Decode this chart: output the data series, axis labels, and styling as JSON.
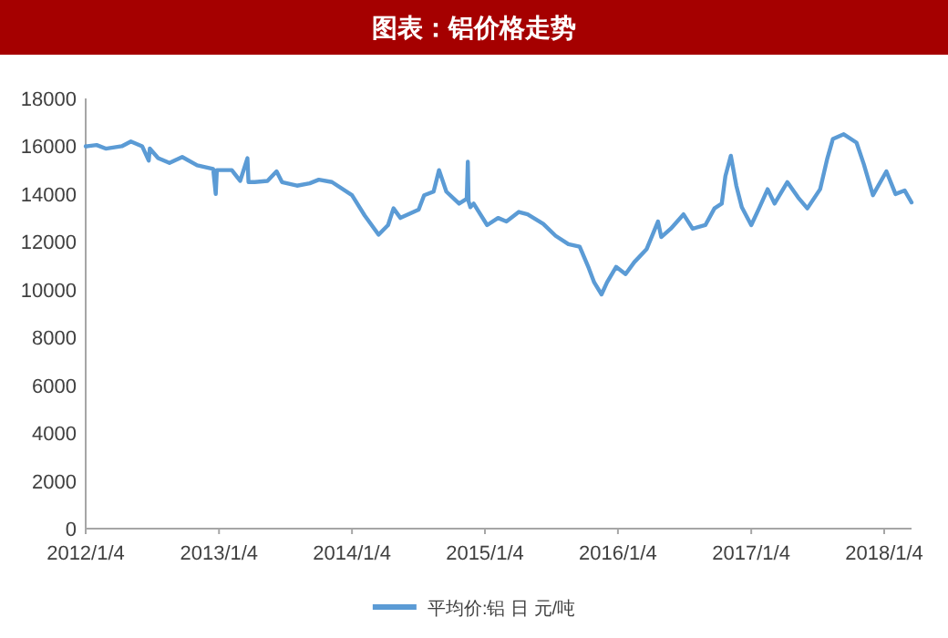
{
  "chart_data": {
    "type": "line",
    "title": "图表：铝价格走势",
    "x": [
      "2012-01-04",
      "2012-01-09",
      "2012-02-03",
      "2012-02-28",
      "2012-04-12",
      "2012-05-07",
      "2012-06-07",
      "2012-06-25",
      "2012-06-28",
      "2012-07-21",
      "2012-08-21",
      "2012-09-25",
      "2012-11-05",
      "2012-12-19",
      "2012-12-26",
      "2012-12-29",
      "2013-02-08",
      "2013-03-03",
      "2013-03-23",
      "2013-03-26",
      "2013-04-12",
      "2013-05-17",
      "2013-06-11",
      "2013-06-26",
      "2013-08-06",
      "2013-09-10",
      "2013-10-05",
      "2013-11-10",
      "2014-01-04",
      "2014-02-08",
      "2014-03-18",
      "2014-04-13",
      "2014-04-28",
      "2014-05-17",
      "2014-07-06",
      "2014-07-21",
      "2014-08-16",
      "2014-08-31",
      "2014-09-20",
      "2014-10-25",
      "2014-11-15",
      "2014-11-18",
      "2014-11-20",
      "2014-11-25",
      "2014-12-04",
      "2015-01-10",
      "2015-02-09",
      "2015-03-04",
      "2015-04-07",
      "2015-05-01",
      "2015-06-13",
      "2015-07-17",
      "2015-08-21",
      "2015-09-21",
      "2015-10-16",
      "2015-10-31",
      "2015-11-20",
      "2015-12-05",
      "2015-12-30",
      "2016-01-25",
      "2016-02-18",
      "2016-03-23",
      "2016-04-23",
      "2016-05-02",
      "2016-05-28",
      "2016-07-02",
      "2016-07-27",
      "2016-08-31",
      "2016-09-25",
      "2016-10-15",
      "2016-10-25",
      "2016-11-09",
      "2016-11-24",
      "2016-12-09",
      "2017-01-04",
      "2017-01-24",
      "2017-02-18",
      "2017-03-09",
      "2017-04-13",
      "2017-05-13",
      "2017-06-07",
      "2017-07-12",
      "2017-08-01",
      "2017-08-16",
      "2017-09-15",
      "2017-10-20",
      "2017-11-09",
      "2017-12-04",
      "2018-01-10",
      "2018-02-04",
      "2018-03-01",
      "2018-03-20"
    ],
    "series": [
      {
        "name": "平均价:铝 日 元/吨",
        "color": "#5b9bd5",
        "values": [
          16000,
          16000,
          16050,
          15900,
          16000,
          16200,
          16000,
          15400,
          15900,
          15500,
          15300,
          15550,
          15200,
          15050,
          14000,
          15000,
          15000,
          14550,
          15500,
          14500,
          14500,
          14550,
          14950,
          14500,
          14350,
          14450,
          14600,
          14500,
          13950,
          13100,
          12300,
          12700,
          13400,
          13000,
          13350,
          13950,
          14100,
          15000,
          14100,
          13600,
          13800,
          15350,
          13700,
          13450,
          13600,
          12700,
          13000,
          12850,
          13250,
          13150,
          12750,
          12250,
          11900,
          11800,
          10900,
          10300,
          9800,
          10300,
          10950,
          10650,
          11150,
          11700,
          12850,
          12200,
          12550,
          13150,
          12550,
          12700,
          13400,
          13600,
          14750,
          15600,
          14350,
          13450,
          12700,
          13350,
          14200,
          13600,
          14500,
          13850,
          13400,
          14200,
          15500,
          16300,
          16500,
          16150,
          15250,
          13950,
          14950,
          14000,
          14150,
          13650
        ]
      }
    ],
    "xlim": [
      "2012-01-04",
      "2018-03-20"
    ],
    "xticks": [
      {
        "value": "2012-01-04",
        "label": "2012/1/4"
      },
      {
        "value": "2013-01-04",
        "label": "2013/1/4"
      },
      {
        "value": "2014-01-04",
        "label": "2014/1/4"
      },
      {
        "value": "2015-01-04",
        "label": "2015/1/4"
      },
      {
        "value": "2016-01-04",
        "label": "2016/1/4"
      },
      {
        "value": "2017-01-04",
        "label": "2017/1/4"
      },
      {
        "value": "2018-01-04",
        "label": "2018/1/4"
      }
    ],
    "ylim": [
      0,
      18000
    ],
    "yticks": [
      0,
      2000,
      4000,
      6000,
      8000,
      10000,
      12000,
      14000,
      16000,
      18000
    ],
    "grid": false,
    "legend": "bottom",
    "marker": "none",
    "line_style": "solid"
  }
}
